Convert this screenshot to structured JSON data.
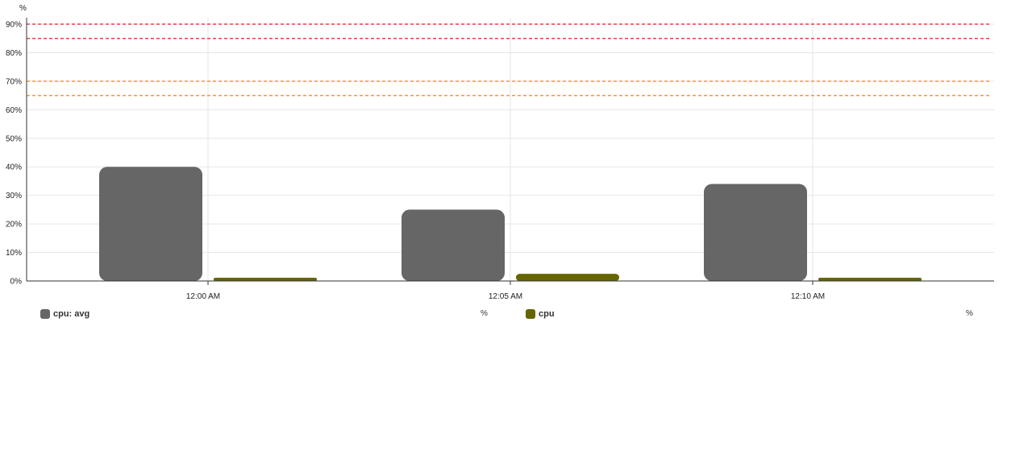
{
  "chart_data": {
    "type": "bar",
    "unit": "%",
    "categories": [
      "12:00 AM",
      "12:05 AM",
      "12:10 AM"
    ],
    "series": [
      {
        "name": "cpu: avg",
        "color": "#666666",
        "values": [
          40,
          25,
          34
        ]
      },
      {
        "name": "cpu",
        "color": "#666600",
        "values": [
          1,
          2.5,
          1
        ]
      }
    ],
    "ylim": [
      0,
      90
    ],
    "yticks": [
      0,
      10,
      20,
      30,
      40,
      50,
      60,
      70,
      80,
      90
    ],
    "ytick_labels": [
      "0%",
      "10%",
      "20%",
      "30%",
      "40%",
      "50%",
      "60%",
      "70%",
      "80%",
      "90%"
    ],
    "thresholds": [
      {
        "value": 90,
        "color": "#e8404a"
      },
      {
        "value": 85,
        "color": "#e8404a"
      },
      {
        "value": 70,
        "color": "#f59a23"
      },
      {
        "value": 65,
        "color": "#f59a23"
      }
    ],
    "grid": true,
    "legend_position": "bottom",
    "legend": [
      {
        "label": "cpu: avg",
        "unit": "%",
        "color": "#666666"
      },
      {
        "label": "cpu",
        "unit": "%",
        "color": "#666600"
      }
    ]
  }
}
